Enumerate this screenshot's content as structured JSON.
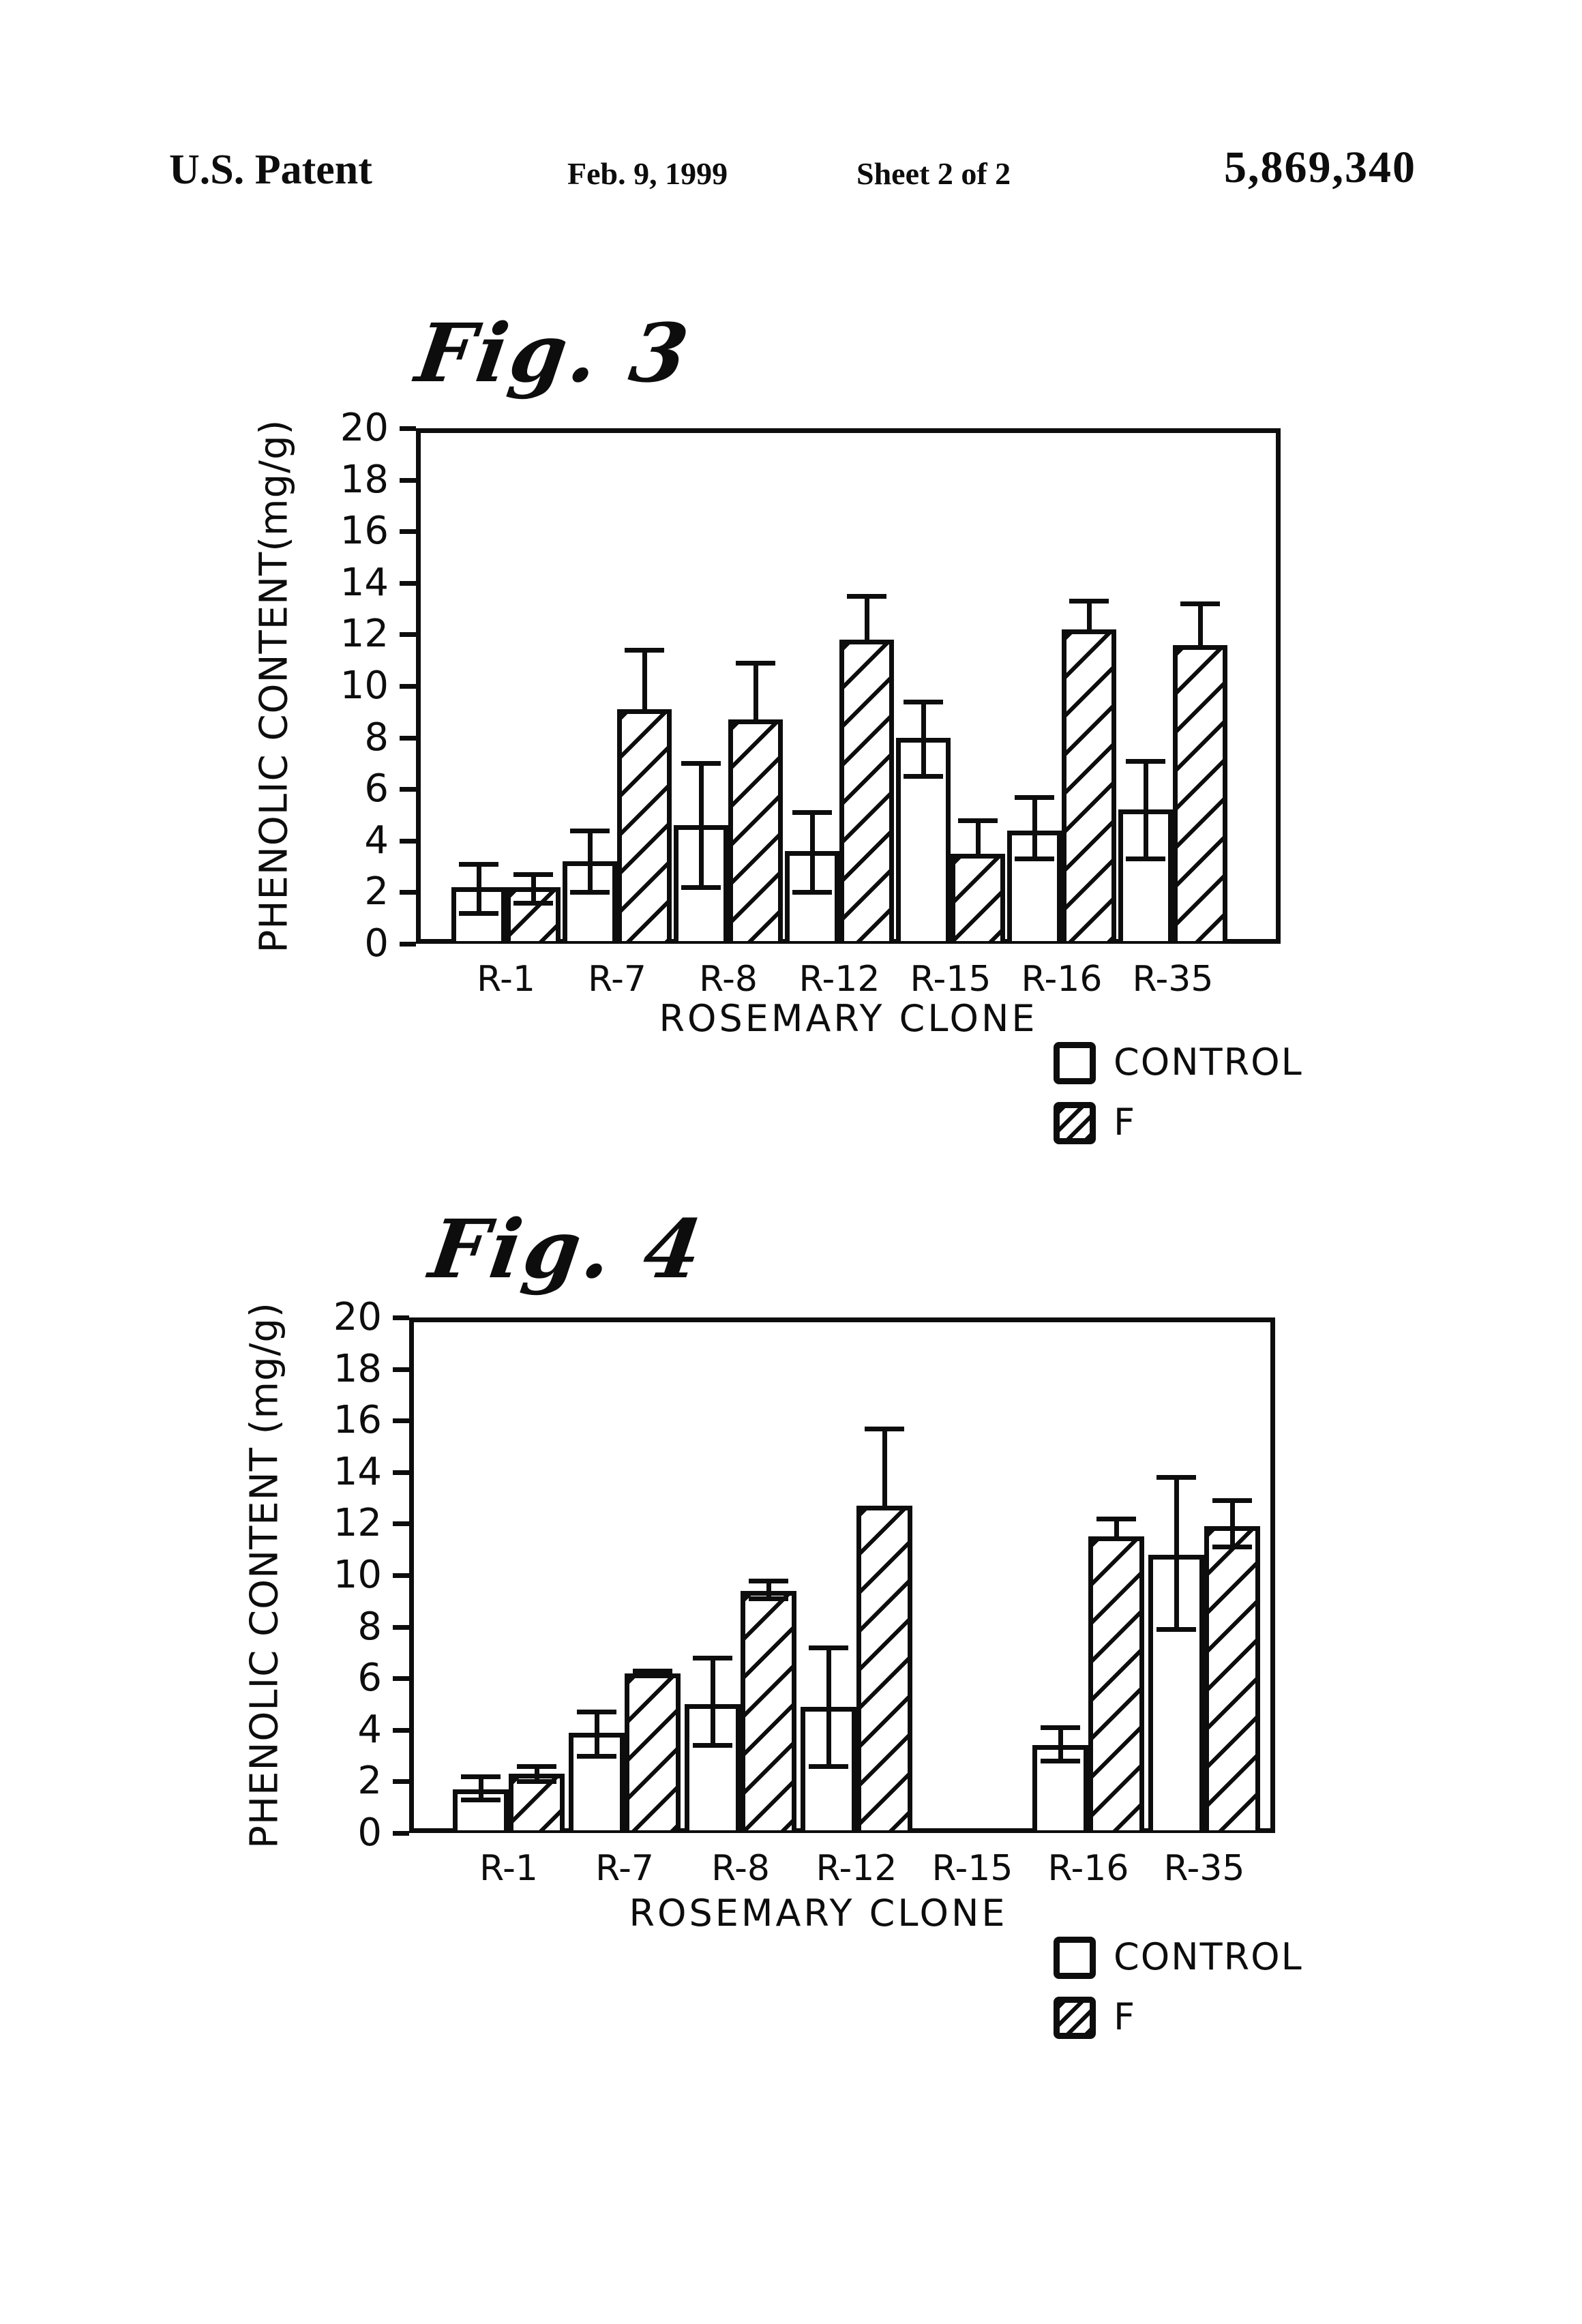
{
  "header": {
    "title": "U.S. Patent",
    "date": "Feb. 9, 1999",
    "sheet": "Sheet 2 of 2",
    "patent_number": "5,869,340"
  },
  "chart_data": [
    {
      "type": "bar",
      "title": "Fig. 3",
      "categories": [
        "R-1",
        "R-7",
        "R-8",
        "R-12",
        "R-15",
        "R-16",
        "R-35"
      ],
      "series": [
        {
          "name": "CONTROL",
          "style": "open",
          "values": [
            2.2,
            3.2,
            4.6,
            3.6,
            8.0,
            4.4,
            5.2
          ],
          "err_low": [
            1.2,
            2.0,
            2.2,
            2.0,
            6.5,
            3.3,
            3.3
          ],
          "err_high": [
            3.1,
            4.4,
            7.0,
            5.1,
            9.4,
            5.7,
            7.1
          ]
        },
        {
          "name": "F",
          "style": "hatched",
          "values": [
            2.2,
            9.1,
            8.7,
            11.8,
            3.5,
            12.2,
            11.6
          ],
          "err_low": [
            1.6,
            9.1,
            8.7,
            11.8,
            3.5,
            12.2,
            11.6
          ],
          "err_high": [
            2.7,
            11.4,
            10.9,
            13.5,
            4.8,
            13.3,
            13.2
          ]
        }
      ],
      "xlabel": "ROSEMARY CLONE",
      "ylabel": "PHENOLIC CONTENT(mg/g)",
      "ylim": [
        0,
        20
      ],
      "yticks": [
        0,
        2,
        4,
        6,
        8,
        10,
        12,
        14,
        16,
        18,
        20
      ],
      "grid": false,
      "legend_position": "below-right",
      "legend": [
        "CONTROL",
        "F"
      ]
    },
    {
      "type": "bar",
      "title": "Fig. 4",
      "categories": [
        "R-1",
        "R-7",
        "R-8",
        "R-12",
        "R-15",
        "R-16",
        "R-35"
      ],
      "series": [
        {
          "name": "CONTROL",
          "style": "open",
          "values": [
            1.7,
            3.9,
            5.0,
            4.9,
            null,
            3.4,
            10.8
          ],
          "err_low": [
            1.3,
            3.0,
            3.4,
            2.6,
            null,
            2.8,
            7.9
          ],
          "err_high": [
            2.2,
            4.7,
            6.8,
            7.2,
            null,
            4.1,
            13.8
          ]
        },
        {
          "name": "F",
          "style": "hatched",
          "values": [
            2.3,
            6.2,
            9.4,
            12.7,
            null,
            11.5,
            11.9
          ],
          "err_low": [
            2.0,
            6.1,
            9.1,
            12.7,
            null,
            11.5,
            11.1
          ],
          "err_high": [
            2.6,
            6.3,
            9.8,
            15.7,
            null,
            12.2,
            12.9
          ]
        }
      ],
      "xlabel": "ROSEMARY CLONE",
      "ylabel": "PHENOLIC CONTENT (mg/g)",
      "ylim": [
        0,
        20
      ],
      "yticks": [
        0,
        2,
        4,
        6,
        8,
        10,
        12,
        14,
        16,
        18,
        20
      ],
      "grid": false,
      "legend_position": "below-right",
      "legend": [
        "CONTROL",
        "F"
      ]
    }
  ],
  "colors": {
    "ink": "#0d0d0d",
    "paper": "#ffffff"
  }
}
